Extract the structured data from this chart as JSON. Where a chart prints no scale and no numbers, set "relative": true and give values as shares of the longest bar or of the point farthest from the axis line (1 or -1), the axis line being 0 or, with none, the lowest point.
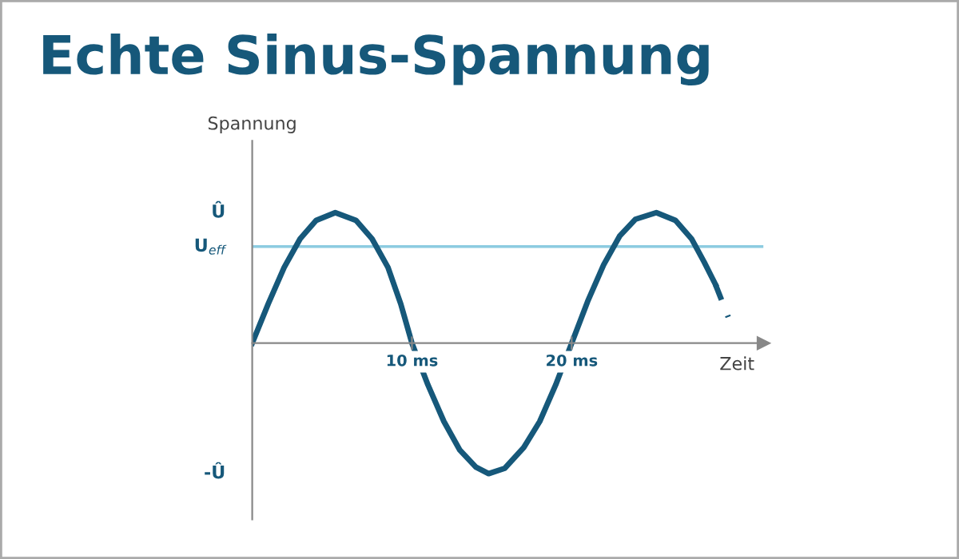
{
  "chart_data": {
    "type": "line",
    "title": "Echte Sinus-Spannung",
    "xlabel": "Zeit",
    "ylabel": "Spannung",
    "relative": true,
    "xlim": [
      0,
      32
    ],
    "xticks": [
      {
        "value": 10,
        "label": "10 ms"
      },
      {
        "value": 20,
        "label": "20 ms"
      }
    ],
    "series": [
      {
        "color": "#16587a",
        "line_style": "solid",
        "x": [
          0,
          1,
          2,
          3,
          4,
          5.2,
          6.5,
          7.5,
          8.5,
          9.3,
          10,
          11,
          12,
          13,
          14,
          14.8,
          15.8,
          17,
          18,
          19,
          20,
          21,
          22,
          23,
          24,
          25.3,
          26.5,
          27.5,
          28.3,
          29
        ],
        "values": [
          0,
          0.3,
          0.58,
          0.8,
          0.94,
          1,
          0.94,
          0.8,
          0.58,
          0.3,
          0,
          -0.32,
          -0.6,
          -0.82,
          -0.95,
          -1,
          -0.96,
          -0.8,
          -0.6,
          -0.32,
          0,
          0.32,
          0.6,
          0.82,
          0.95,
          1,
          0.94,
          0.8,
          0.62,
          0.45
        ]
      },
      {
        "color": "#16587a",
        "line_style": "dashed",
        "x": [
          29,
          29.8
        ],
        "values": [
          0.45,
          0.2
        ]
      }
    ],
    "ref_lines": [
      {
        "axis": "y",
        "value": 0.74,
        "label": "U$_{eff}$",
        "color": "#8ccbe0"
      }
    ],
    "annotations": [
      "Û",
      "-Û"
    ],
    "grid": false,
    "legend": false
  }
}
